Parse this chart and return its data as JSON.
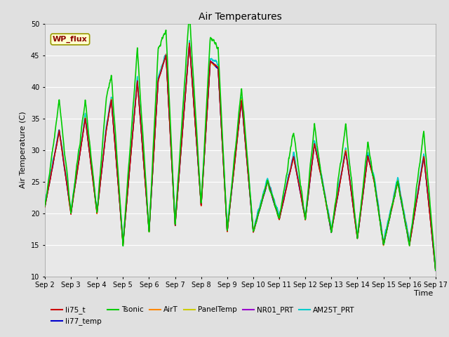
{
  "title": "Air Temperatures",
  "ylabel": "Air Temperature (C)",
  "xlabel": "Time",
  "ylim": [
    10,
    50
  ],
  "fig_bg": "#e8e8e8",
  "plot_bg": "#e8e8e8",
  "series": {
    "li75_t": {
      "color": "#cc0000",
      "lw": 1.0,
      "zorder": 3
    },
    "li77_temp": {
      "color": "#0000cc",
      "lw": 1.0,
      "zorder": 3
    },
    "Tsonic": {
      "color": "#00cc00",
      "lw": 1.2,
      "zorder": 4
    },
    "AirT": {
      "color": "#ff8800",
      "lw": 1.0,
      "zorder": 3
    },
    "PanelTemp": {
      "color": "#cccc00",
      "lw": 1.0,
      "zorder": 3
    },
    "NR01_PRT": {
      "color": "#9900cc",
      "lw": 1.0,
      "zorder": 3
    },
    "AM25T_PRT": {
      "color": "#00cccc",
      "lw": 1.2,
      "zorder": 3
    }
  },
  "xtick_labels": [
    "Sep 2",
    "Sep 3",
    "Sep 4",
    "Sep 5",
    "Sep 6",
    "Sep 7",
    "Sep 8",
    "Sep 9",
    "Sep 10",
    "Sep 11",
    "Sep 12",
    "Sep 13",
    "Sep 14",
    "Sep 15",
    "Sep 16",
    "Sep 17"
  ],
  "ytick_vals": [
    10,
    15,
    20,
    25,
    30,
    35,
    40,
    45,
    50
  ],
  "annotation_text": "WP_flux",
  "legend_order": [
    "li75_t",
    "li77_temp",
    "Tsonic",
    "AirT",
    "PanelTemp",
    "NR01_PRT",
    "AM25T_PRT"
  ]
}
